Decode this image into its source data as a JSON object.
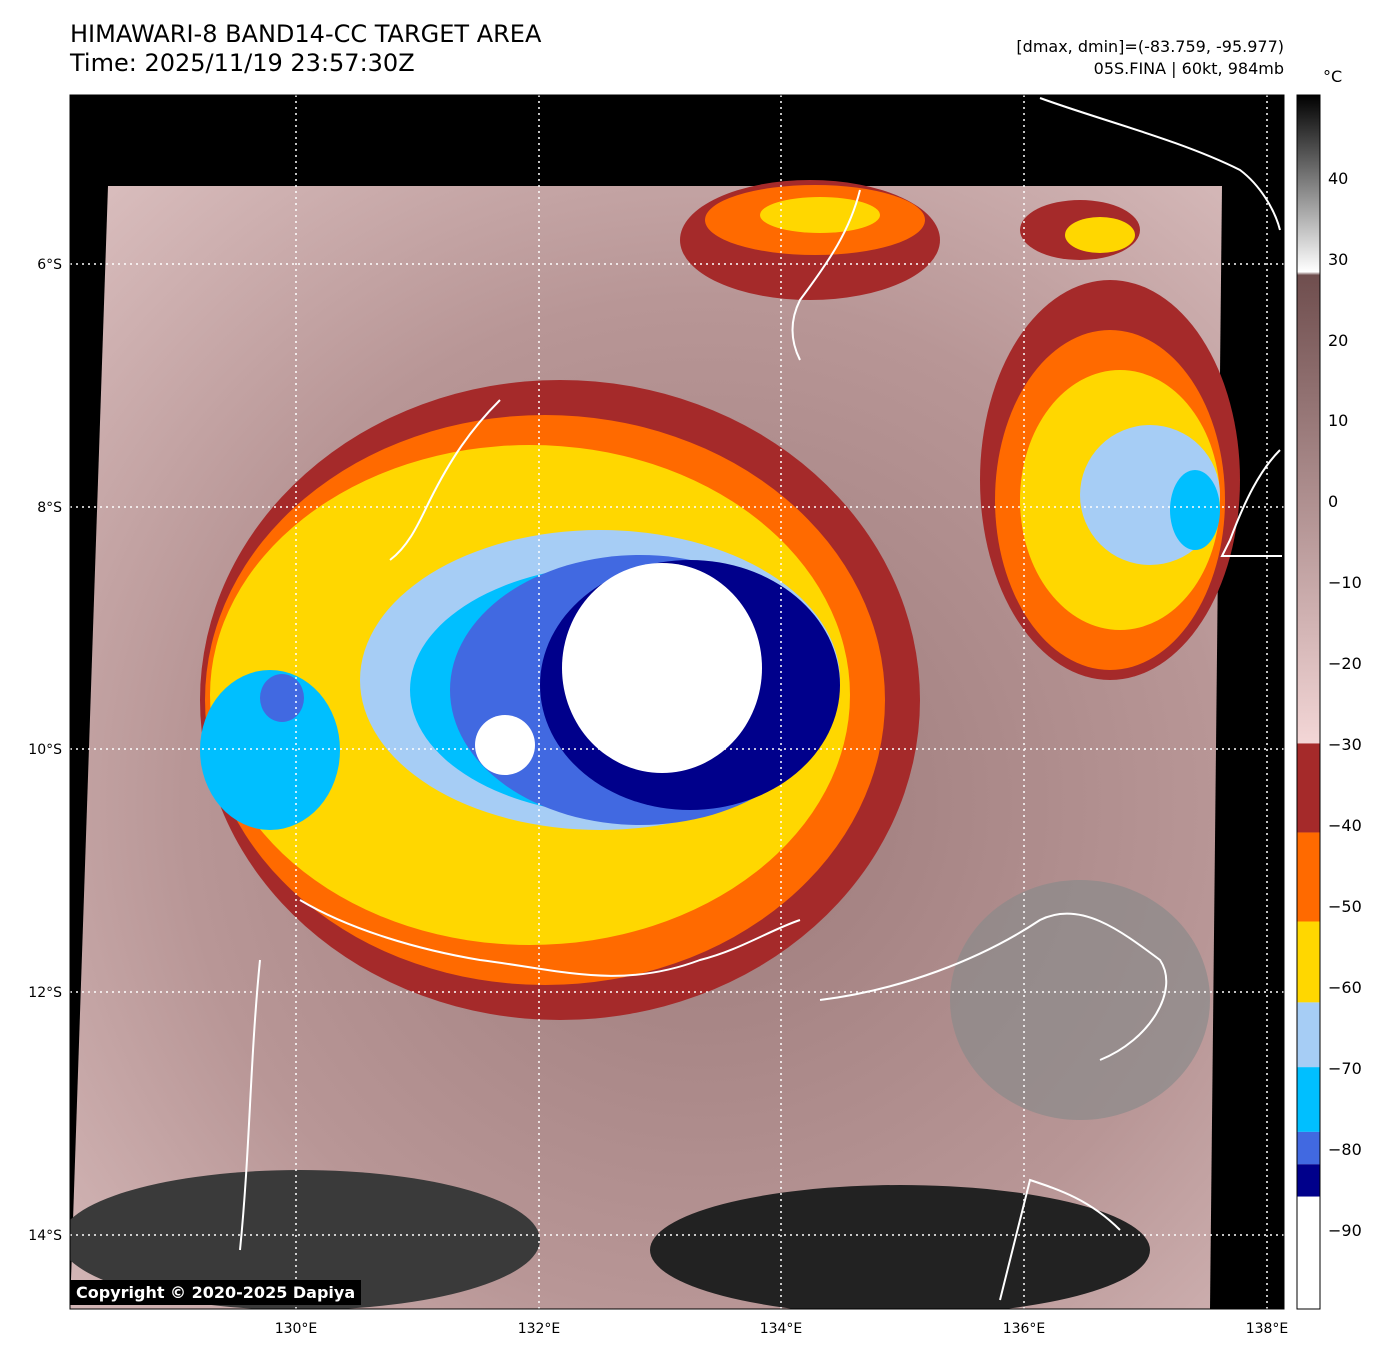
{
  "header": {
    "title_line1": "HIMAWARI-8 BAND14-CC TARGET AREA",
    "title_line2": "Time: 2025/11/19 23:57:30Z",
    "range_text": "[dmax, dmin]=(-83.759, -95.977)",
    "storm_text": "05S.FINA | 60kt, 984mb"
  },
  "map": {
    "lon_ticks": [
      "130°E",
      "132°E",
      "134°E",
      "136°E",
      "138°E"
    ],
    "lat_ticks": [
      "6°S",
      "8°S",
      "10°S",
      "12°S",
      "14°S"
    ],
    "copyright": "Copyright © 2020-2025 Dapiya"
  },
  "colorbar": {
    "unit": "°C",
    "labels": [
      "40",
      "30",
      "20",
      "10",
      "0",
      "−10",
      "−20",
      "−30",
      "−40",
      "−50",
      "−60",
      "−70",
      "−80",
      "−90"
    ],
    "bands": [
      {
        "min": -30,
        "max": -41,
        "color": "#a52a2a"
      },
      {
        "min": -41,
        "max": -52,
        "color": "#ff6a00"
      },
      {
        "min": -52,
        "max": -62,
        "color": "#ffd700"
      },
      {
        "min": -62,
        "max": -70,
        "color": "#a6cdf5"
      },
      {
        "min": -70,
        "max": -78,
        "color": "#00bfff"
      },
      {
        "min": -78,
        "max": -82,
        "color": "#4169e1"
      },
      {
        "min": -82,
        "max": -86,
        "color": "#00008b"
      },
      {
        "min": -86,
        "max": -100,
        "color": "#ffffff"
      }
    ],
    "warm_gradient": [
      "#000000",
      "#ffffff",
      "#6f4e4e",
      "#f5d8d8"
    ]
  }
}
